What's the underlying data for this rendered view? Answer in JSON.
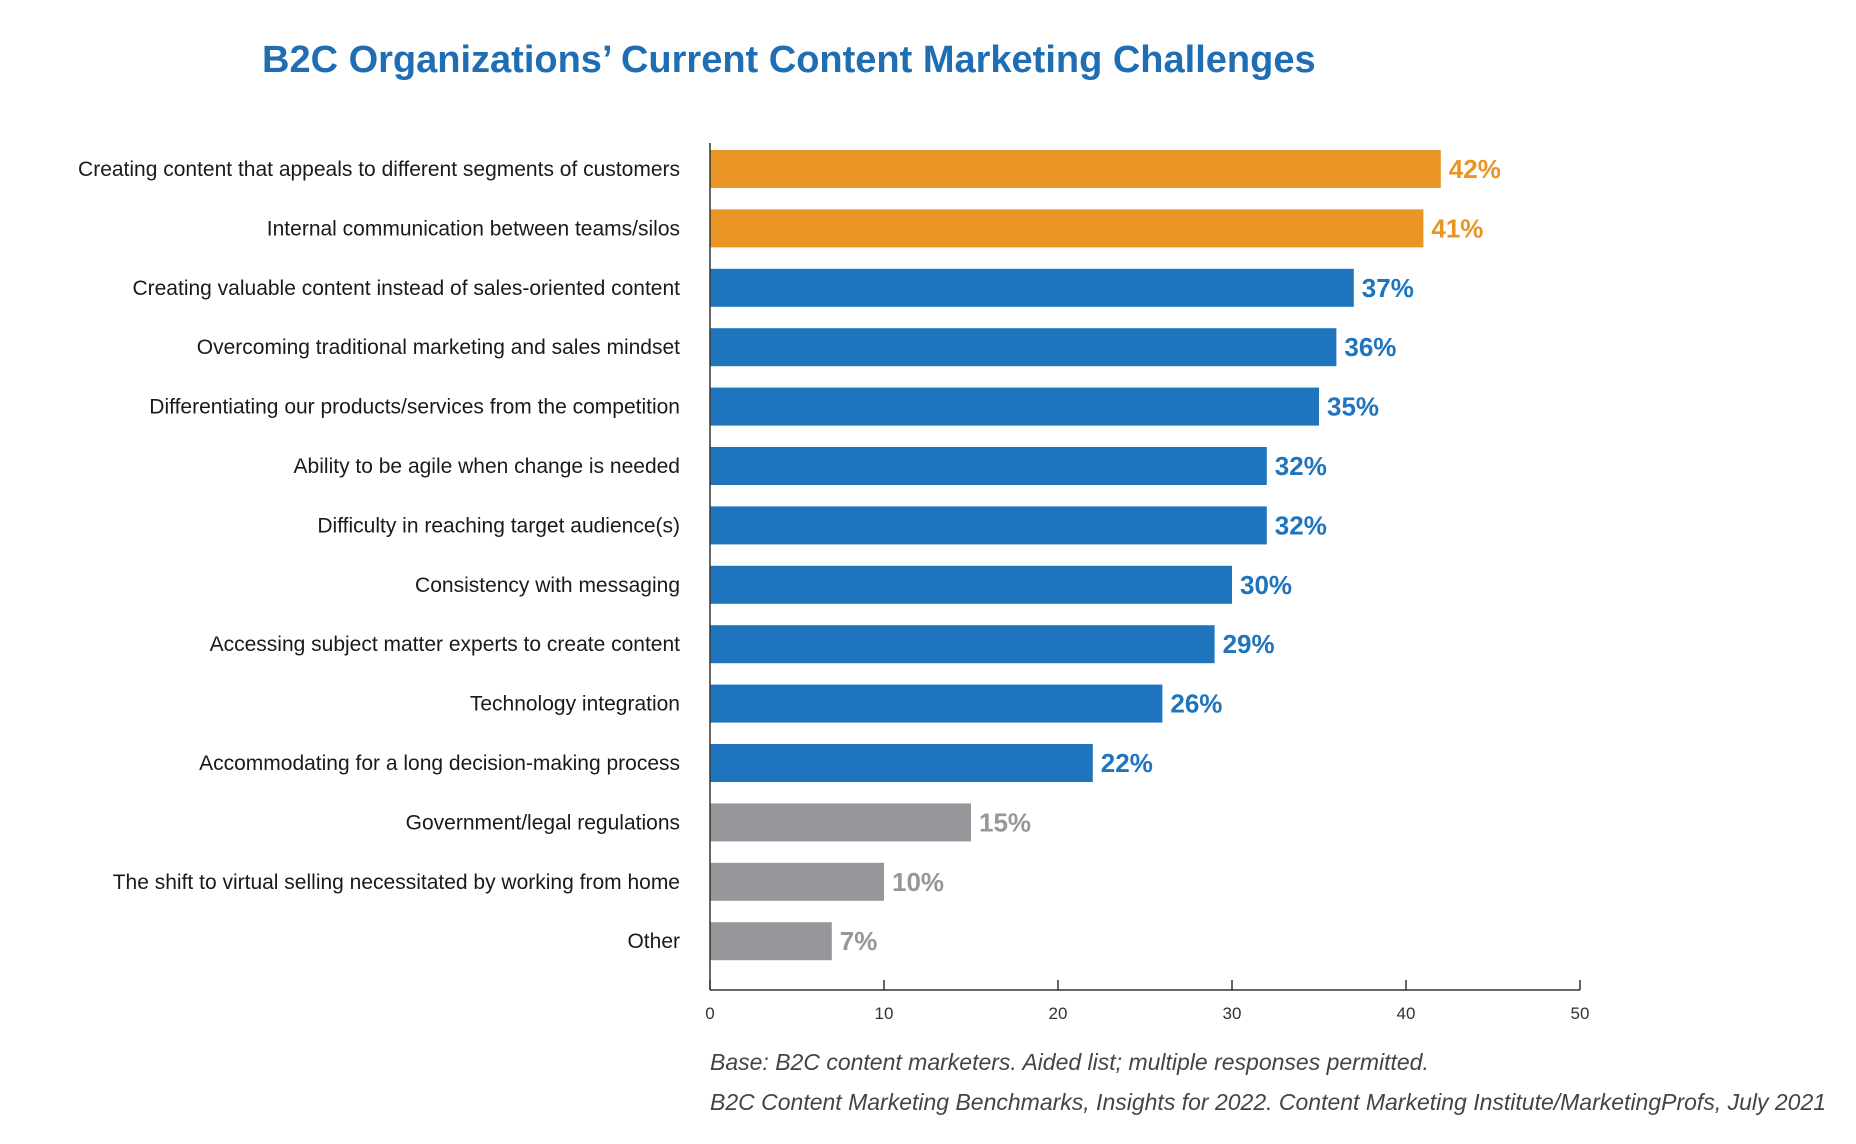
{
  "colors": {
    "highlight": "#e99526",
    "primary": "#1e74bd",
    "muted": "#96979a",
    "title": "#1f6db3",
    "axis": "#333333"
  },
  "chart_data": {
    "type": "bar",
    "orientation": "horizontal",
    "title": "B2C Organizations’ Current Content Marketing Challenges",
    "xlabel": "",
    "ylabel": "",
    "xlim": [
      0,
      50
    ],
    "ticks": [
      0,
      10,
      20,
      30,
      40,
      50
    ],
    "grid": false,
    "categories": [
      "Creating content that appeals to different segments of customers",
      "Internal communication between teams/silos",
      "Creating valuable content instead of sales-oriented content",
      "Overcoming traditional marketing and sales mindset",
      "Differentiating our products/services from the competition",
      "Ability to be agile when change is needed",
      "Difficulty in reaching target audience(s)",
      "Consistency with messaging",
      "Accessing subject matter experts to create content",
      "Technology integration",
      "Accommodating for a long decision-making process",
      "Government/legal regulations",
      "The shift to virtual selling necessitated  by working from home",
      "Other"
    ],
    "values": [
      42,
      41,
      37,
      36,
      35,
      32,
      32,
      30,
      29,
      26,
      22,
      15,
      10,
      7
    ],
    "value_labels": [
      "42%",
      "41%",
      "37%",
      "36%",
      "35%",
      "32%",
      "32%",
      "30%",
      "29%",
      "26%",
      "22%",
      "15%",
      "10%",
      "7%"
    ],
    "color_groups": [
      "highlight",
      "highlight",
      "primary",
      "primary",
      "primary",
      "primary",
      "primary",
      "primary",
      "primary",
      "primary",
      "primary",
      "muted",
      "muted",
      "muted"
    ]
  },
  "notes": {
    "base": "Base: B2C content marketers. Aided list; multiple responses permitted.",
    "source": "B2C Content Marketing Benchmarks, Insights for 2022. Content Marketing Institute/MarketingProfs, July 2021"
  }
}
